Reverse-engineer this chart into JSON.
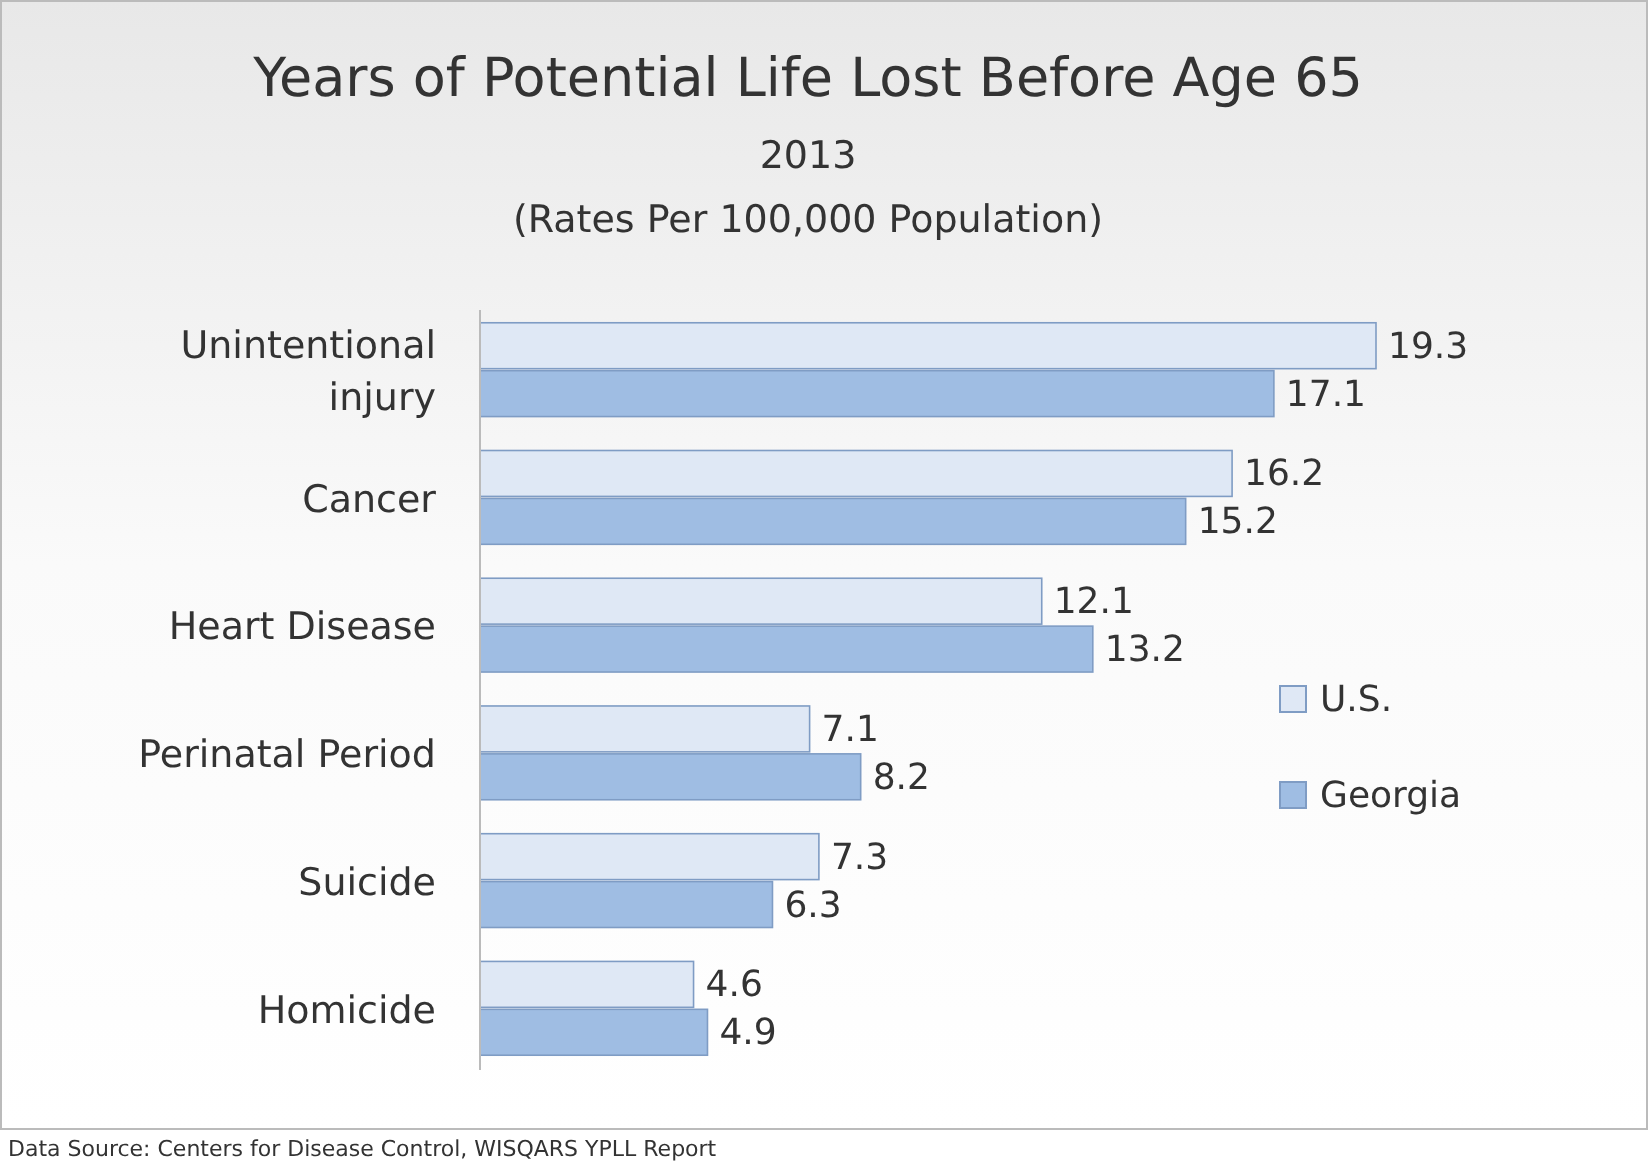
{
  "chart_data": {
    "type": "bar",
    "orientation": "horizontal",
    "title": "Years of Potential Life Lost Before Age 65",
    "subtitle": "2013\n(Rates Per 100,000 Population)",
    "categories": [
      "Unintentional\ninjury",
      "Cancer",
      "Heart Disease",
      "Perinatal Period",
      "Suicide",
      "Homicide"
    ],
    "series": [
      {
        "name": "U.S.",
        "color": "#dfe8f5",
        "values": [
          19.3,
          16.2,
          12.1,
          7.1,
          7.3,
          4.6
        ]
      },
      {
        "name": "Georgia",
        "color": "#9fbde3",
        "values": [
          17.1,
          15.2,
          13.2,
          8.2,
          6.3,
          4.9
        ]
      }
    ],
    "tick_labels": "y",
    "data_labels": true,
    "legend": "right",
    "grid": false,
    "annotations": [
      "Data Source:  Centers for Disease Control, WISQARS YPLL Report"
    ]
  }
}
